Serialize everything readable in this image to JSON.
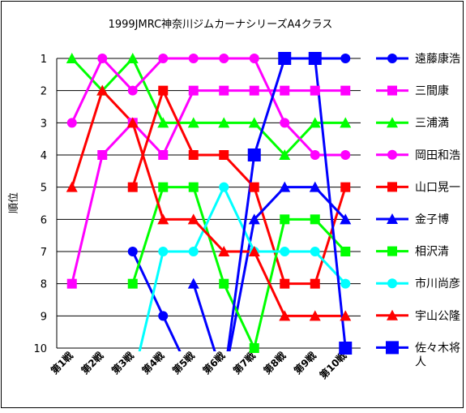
{
  "chart_data": {
    "type": "line",
    "title": "1999JMRC神奈川ジムカーナシリーズA4クラス",
    "xlabel": "",
    "ylabel": "順位",
    "ylim": [
      1,
      10
    ],
    "y_inverted": true,
    "y_ticks": [
      "1",
      "2",
      "3",
      "4",
      "5",
      "6",
      "7",
      "8",
      "9",
      "10"
    ],
    "grid": "horizontal",
    "legend_position": "right",
    "categories": [
      "第1戦",
      "第2戦",
      "第3戦",
      "第4戦",
      "第5戦",
      "第6戦",
      "第7戦",
      "第8戦",
      "第9戦",
      "第10戦"
    ],
    "series": [
      {
        "name": "遠藤康浩",
        "color": "#0000ff",
        "marker": "circle",
        "values": [
          null,
          null,
          7,
          9,
          11,
          null,
          null,
          1,
          1,
          1
        ]
      },
      {
        "name": "三間康",
        "color": "#ff00ff",
        "marker": "square",
        "values": [
          8,
          4,
          3,
          4,
          2,
          2,
          2,
          2,
          2,
          2
        ]
      },
      {
        "name": "三浦満",
        "color": "#00ff00",
        "marker": "triangle",
        "values": [
          1,
          2,
          1,
          3,
          3,
          3,
          3,
          4,
          3,
          3
        ]
      },
      {
        "name": "岡田和浩",
        "color": "#ff00ff",
        "marker": "circle",
        "values": [
          3,
          1,
          2,
          1,
          1,
          1,
          1,
          3,
          4,
          4
        ]
      },
      {
        "name": "山口晃一",
        "color": "#ff0000",
        "marker": "square",
        "values": [
          null,
          null,
          5,
          2,
          4,
          4,
          5,
          8,
          8,
          5
        ]
      },
      {
        "name": "金子博",
        "color": "#0000ff",
        "marker": "triangle",
        "values": [
          null,
          null,
          null,
          null,
          8,
          11,
          6,
          5,
          5,
          6
        ]
      },
      {
        "name": "相沢清",
        "color": "#00ff00",
        "marker": "square",
        "values": [
          null,
          null,
          8,
          5,
          5,
          8,
          10,
          6,
          6,
          7
        ]
      },
      {
        "name": "市川尚彦",
        "color": "#00ffff",
        "marker": "circle",
        "values": [
          null,
          null,
          11,
          7,
          7,
          5,
          7,
          7,
          7,
          8
        ]
      },
      {
        "name": "宇山公隆",
        "color": "#ff0000",
        "marker": "triangle",
        "values": [
          5,
          2,
          3,
          6,
          6,
          7,
          7,
          9,
          9,
          9
        ]
      },
      {
        "name": "佐々木将人",
        "color": "#0000ff",
        "marker": "bigsquare",
        "values": [
          null,
          null,
          null,
          null,
          null,
          11,
          4,
          1,
          1,
          10
        ]
      }
    ]
  }
}
